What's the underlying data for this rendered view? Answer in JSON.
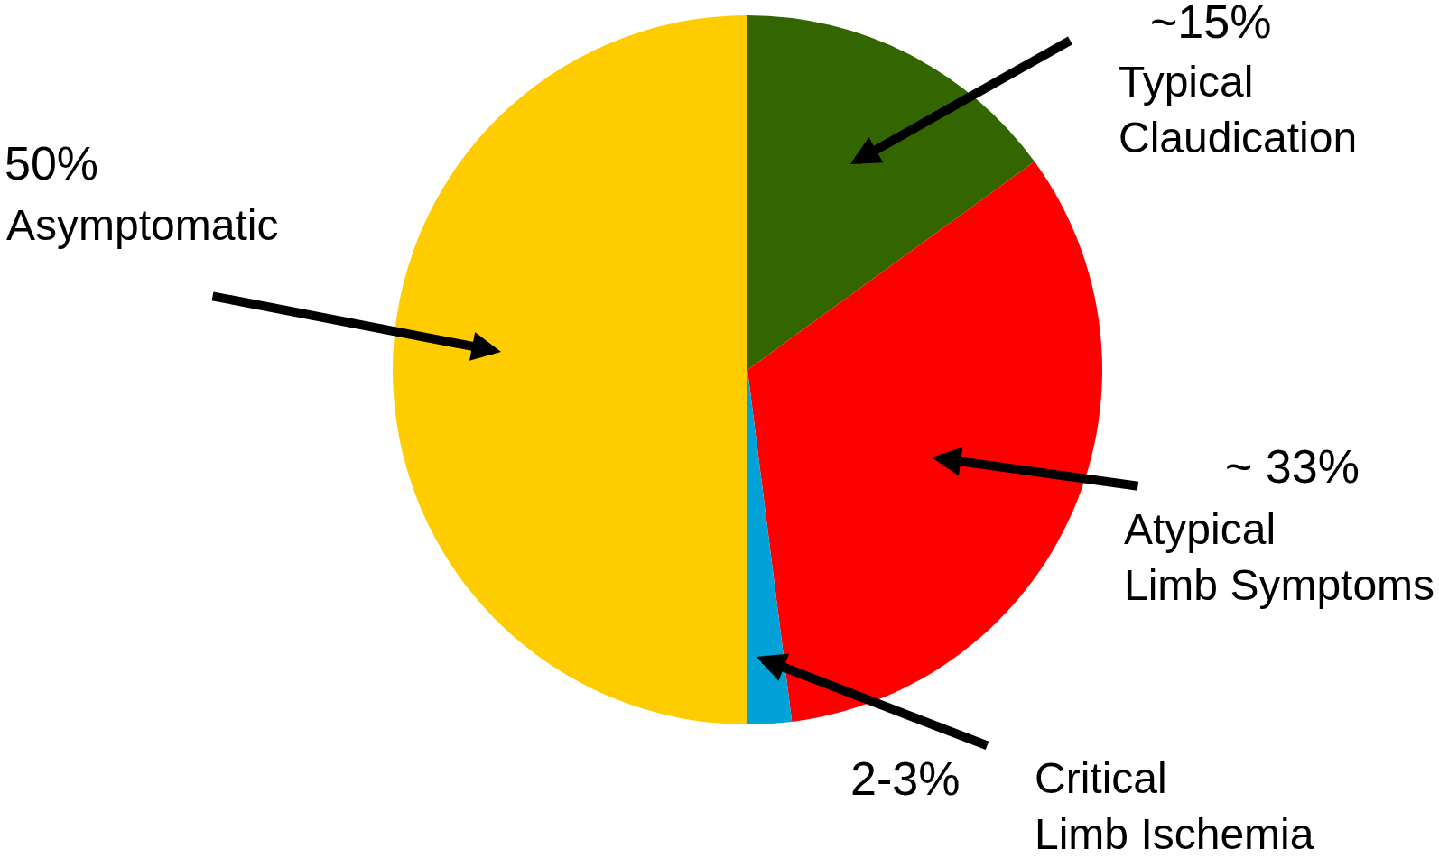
{
  "chart_data": {
    "type": "pie",
    "categories": [
      "Typical Claudication",
      "Atypical Limb Symptoms",
      "Critical Limb Ischemia",
      "Asymptomatic"
    ],
    "values": [
      15,
      33,
      2,
      50
    ],
    "value_labels": [
      "~15%",
      "~ 33%",
      "2-3%",
      "50%"
    ],
    "colors": [
      "#336600",
      "#ff0000",
      "#00a2d8",
      "#ffcc00"
    ],
    "legend": false
  }
}
